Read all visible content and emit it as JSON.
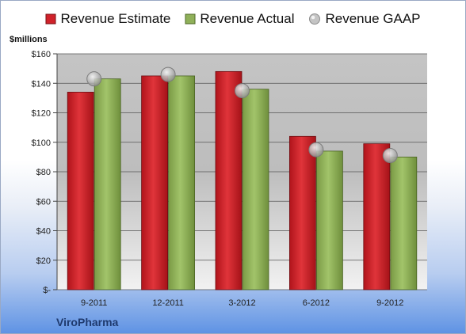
{
  "chart_data": {
    "type": "bar",
    "title": "",
    "ylabel": "$millions",
    "xlabel": "",
    "categories": [
      "9-2011",
      "12-2011",
      "3-2012",
      "6-2012",
      "9-2012"
    ],
    "series": [
      {
        "name": "Revenue Estimate",
        "kind": "bar",
        "color": "#d0222a",
        "values": [
          134,
          145,
          148,
          104,
          99
        ]
      },
      {
        "name": "Revenue Actual",
        "kind": "bar",
        "color": "#8fb059",
        "values": [
          143,
          145,
          136,
          94,
          90
        ]
      },
      {
        "name": "Revenue GAAP",
        "kind": "marker",
        "color": "#b8b8b8",
        "values": [
          143,
          146,
          135,
          95,
          91
        ]
      }
    ],
    "ylim": [
      0,
      160
    ],
    "yticks": [
      0,
      20,
      40,
      60,
      80,
      100,
      120,
      140,
      160
    ],
    "ytick_labels": [
      "$-",
      "$20",
      "$40",
      "$60",
      "$80",
      "$100",
      "$120",
      "$140",
      "$160"
    ],
    "grid": true,
    "legend_position": "top"
  },
  "company_name": "ViroPharma"
}
